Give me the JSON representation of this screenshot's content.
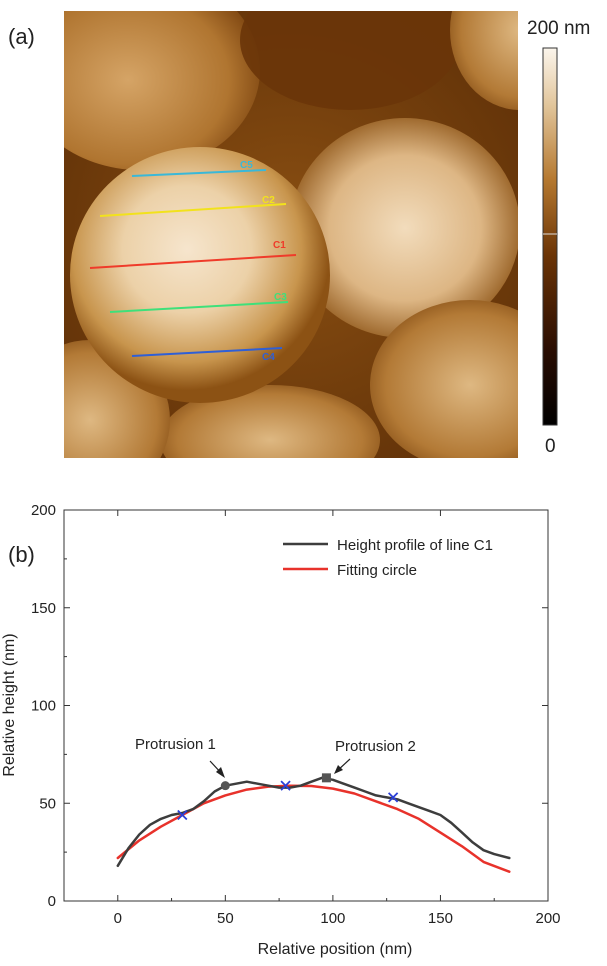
{
  "panel_a": {
    "label": "(a)",
    "colorbar": {
      "max_label": "200 nm",
      "min_label": "0"
    },
    "line_labels": [
      "C5",
      "C2",
      "C1",
      "C3",
      "C4"
    ],
    "colors": {
      "C5": "#3ab8d8",
      "C2": "#f2e21c",
      "C1": "#ef3b2a",
      "C3": "#3ee07a",
      "C4": "#2f5fd6"
    }
  },
  "panel_b": {
    "label": "(b)",
    "annotations": [
      "Protrusion 1",
      "Protrusion 2"
    ]
  },
  "chart_data": {
    "type": "line",
    "xlabel": "Relative position (nm)",
    "ylabel": "Relative height (nm)",
    "xlim": [
      -25,
      200
    ],
    "ylim": [
      0,
      200
    ],
    "x_ticks": [
      0,
      50,
      100,
      150,
      200
    ],
    "y_ticks": [
      0,
      50,
      100,
      150,
      200
    ],
    "legend_position": "top-right",
    "series": [
      {
        "name": "Height profile of line C1",
        "color": "#3d3d3d",
        "x": [
          0,
          5,
          10,
          15,
          20,
          25,
          30,
          35,
          40,
          45,
          50,
          55,
          60,
          65,
          70,
          75,
          80,
          85,
          90,
          95,
          100,
          105,
          110,
          115,
          120,
          125,
          130,
          135,
          140,
          145,
          150,
          155,
          160,
          165,
          170,
          175,
          182
        ],
        "y": [
          18,
          27,
          34,
          39,
          42,
          44,
          45,
          47,
          51,
          56,
          59,
          60,
          61,
          60,
          59,
          58,
          58,
          59,
          61,
          63,
          62,
          60,
          58,
          56,
          54,
          53,
          52,
          50,
          48,
          46,
          44,
          40,
          35,
          30,
          26,
          24,
          22
        ]
      },
      {
        "name": "Fitting circle",
        "color": "#e8322b",
        "x": [
          0,
          10,
          20,
          30,
          40,
          50,
          60,
          70,
          80,
          90,
          100,
          110,
          120,
          130,
          140,
          150,
          160,
          170,
          182
        ],
        "y": [
          22,
          31,
          38,
          44,
          50,
          54,
          57,
          58.5,
          59,
          58.8,
          57.5,
          55,
          51,
          47,
          42,
          35,
          28,
          20,
          15
        ]
      }
    ],
    "markers": [
      {
        "shape": "circle",
        "x": 50,
        "y": 59,
        "color": "#555555"
      },
      {
        "shape": "square",
        "x": 97,
        "y": 63,
        "color": "#555555"
      },
      {
        "shape": "cross",
        "x": 30,
        "y": 44,
        "color": "#2b3fd6"
      },
      {
        "shape": "cross",
        "x": 78,
        "y": 59,
        "color": "#2b3fd6"
      },
      {
        "shape": "cross",
        "x": 128,
        "y": 53,
        "color": "#2b3fd6"
      }
    ]
  }
}
